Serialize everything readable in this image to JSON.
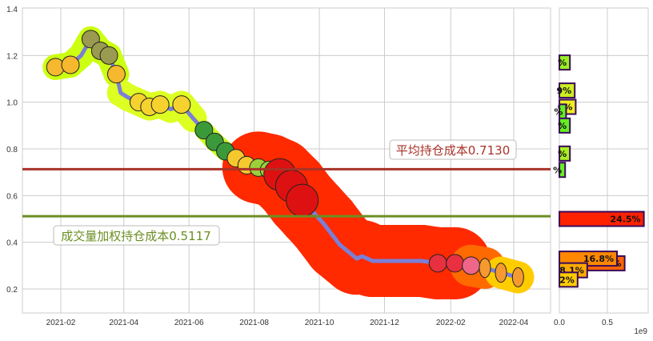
{
  "chart_data": [
    {
      "type": "line",
      "title": "",
      "xlabel": "",
      "ylabel": "",
      "ylim": [
        0.1,
        1.4
      ],
      "grid": true,
      "x_tick_labels": [
        "2021-02",
        "2021-04",
        "2021-06",
        "2021-08",
        "2021-10",
        "2021-12",
        "2022-02",
        "2022-04"
      ],
      "y_tick_labels": [
        "0.2",
        "0.4",
        "0.6",
        "0.8",
        "1.0",
        "1.2",
        "1.4"
      ],
      "series": [
        {
          "name": "price",
          "color": "#7b7fd6",
          "x": [
            "2021-01-27",
            "2021-02-10",
            "2021-02-20",
            "2021-03-01",
            "2021-03-10",
            "2021-03-18",
            "2021-03-25",
            "2021-03-29",
            "2021-04-05",
            "2021-04-15",
            "2021-04-25",
            "2021-05-05",
            "2021-05-15",
            "2021-05-25",
            "2021-06-05",
            "2021-06-15",
            "2021-06-25",
            "2021-07-05",
            "2021-07-15",
            "2021-07-25",
            "2021-08-05",
            "2021-08-15",
            "2021-08-25",
            "2021-09-05",
            "2021-09-15",
            "2021-09-25",
            "2021-10-05",
            "2021-10-20",
            "2021-11-05",
            "2021-11-10",
            "2021-11-20",
            "2021-12-01",
            "2021-12-20",
            "2022-01-05",
            "2022-01-20",
            "2022-02-05",
            "2022-02-20",
            "2022-03-05",
            "2022-03-20",
            "2022-04-05"
          ],
          "values": [
            1.15,
            1.16,
            1.2,
            1.27,
            1.22,
            1.2,
            1.12,
            1.04,
            1.02,
            1.0,
            0.98,
            0.99,
            0.97,
            0.99,
            0.93,
            0.88,
            0.83,
            0.79,
            0.76,
            0.73,
            0.72,
            0.71,
            0.69,
            0.64,
            0.58,
            0.53,
            0.48,
            0.39,
            0.33,
            0.34,
            0.32,
            0.32,
            0.32,
            0.32,
            0.31,
            0.31,
            0.3,
            0.29,
            0.27,
            0.25
          ]
        }
      ],
      "annotations": [
        {
          "text": "平均持仓成本0.7130",
          "y": 0.713,
          "color": "#a83228"
        },
        {
          "text": "成交量加权持仓成本0.5117",
          "y": 0.5117,
          "color": "#6b8e23"
        }
      ],
      "markers": [
        "pineapple",
        "pear",
        "banana",
        "watermelon",
        "corn",
        "kiwi",
        "apple",
        "watermelon-slice",
        "radish",
        "carrot"
      ]
    },
    {
      "type": "bar",
      "orientation": "horizontal",
      "xlabel": "",
      "x_tick_labels": [
        "0.0",
        "0.5"
      ],
      "x_offset_label": "1e9",
      "xlim": [
        0,
        0.92
      ],
      "bars": [
        {
          "y": 1.17,
          "value": 0.11,
          "label": "%",
          "color": "#99ee22"
        },
        {
          "y": 1.05,
          "value": 0.16,
          "label": "9%",
          "color": "#ccee22"
        },
        {
          "y": 0.98,
          "value": 0.17,
          "label": "0%",
          "color": "#eeee22"
        },
        {
          "y": 0.96,
          "value": 0.07,
          "label": "%",
          "color": "#66ee22"
        },
        {
          "y": 0.9,
          "value": 0.11,
          "label": "%",
          "color": "#66ee22"
        },
        {
          "y": 0.78,
          "value": 0.11,
          "label": "%",
          "color": "#aaee22"
        },
        {
          "y": 0.71,
          "value": 0.06,
          "label": "%",
          "color": "#66ee22"
        },
        {
          "y": 0.5,
          "value": 0.88,
          "label": "24.5%",
          "color": "#ff2200"
        },
        {
          "y": 0.31,
          "value": 0.68,
          "label": "18.9%",
          "color": "#ff6600"
        },
        {
          "y": 0.33,
          "value": 0.6,
          "label": "16.8%",
          "color": "#ff8800"
        },
        {
          "y": 0.28,
          "value": 0.29,
          "label": "8.1%",
          "color": "#ffaa00"
        },
        {
          "y": 0.24,
          "value": 0.19,
          "label": "2%",
          "color": "#ffcc00"
        }
      ]
    }
  ],
  "labels": {
    "avg_cost": "平均持仓成本0.7130",
    "vwap_cost": "成交量加权持仓成本0.5117",
    "offset": "1e9"
  }
}
